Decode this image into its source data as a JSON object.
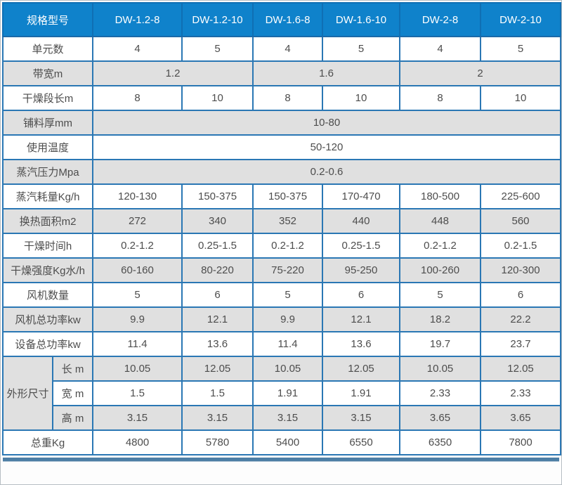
{
  "colors": {
    "header_bg": "#0f82cb",
    "header_text": "#ffffff",
    "cell_border": "#2a77b4",
    "stripe_gray": "#e0e0e0",
    "stripe_white": "#ffffff",
    "body_text": "#4d4d4d",
    "bottom_bar": "#4d7ea5"
  },
  "table": {
    "corner_label": "规格型号",
    "models": [
      "DW-1.2-8",
      "DW-1.2-10",
      "DW-1.6-8",
      "DW-1.6-10",
      "DW-2-8",
      "DW-2-10"
    ],
    "dimension_group_label": "外形尺寸",
    "rows": [
      {
        "label": "单元数",
        "shade": "white",
        "cells": [
          {
            "t": "4"
          },
          {
            "t": "5"
          },
          {
            "t": "4"
          },
          {
            "t": "5"
          },
          {
            "t": "4"
          },
          {
            "t": "5"
          }
        ]
      },
      {
        "label": "带宽m",
        "shade": "gray",
        "cells": [
          {
            "t": "1.2",
            "cs": 2
          },
          {
            "t": "1.6",
            "cs": 2
          },
          {
            "t": "2",
            "cs": 2
          }
        ]
      },
      {
        "label": "干燥段长m",
        "shade": "white",
        "cells": [
          {
            "t": "8"
          },
          {
            "t": "10"
          },
          {
            "t": "8"
          },
          {
            "t": "10"
          },
          {
            "t": "8"
          },
          {
            "t": "10"
          }
        ]
      },
      {
        "label": "铺料厚mm",
        "shade": "gray",
        "cells": [
          {
            "t": "10-80",
            "cs": 6
          }
        ]
      },
      {
        "label": "使用温度",
        "shade": "white",
        "cells": [
          {
            "t": "50-120",
            "cs": 6
          }
        ]
      },
      {
        "label": "蒸汽压力Mpa",
        "shade": "gray",
        "cells": [
          {
            "t": "0.2-0.6",
            "cs": 6
          }
        ]
      },
      {
        "label": "蒸汽耗量Kg/h",
        "shade": "white",
        "cells": [
          {
            "t": "120-130"
          },
          {
            "t": "150-375"
          },
          {
            "t": "150-375"
          },
          {
            "t": "170-470"
          },
          {
            "t": "180-500"
          },
          {
            "t": "225-600"
          }
        ]
      },
      {
        "label": "换热面积m2",
        "shade": "gray",
        "cells": [
          {
            "t": "272"
          },
          {
            "t": "340"
          },
          {
            "t": "352"
          },
          {
            "t": "440"
          },
          {
            "t": "448"
          },
          {
            "t": "560"
          }
        ]
      },
      {
        "label": "干燥时间h",
        "shade": "white",
        "cells": [
          {
            "t": "0.2-1.2"
          },
          {
            "t": "0.25-1.5"
          },
          {
            "t": "0.2-1.2"
          },
          {
            "t": "0.25-1.5"
          },
          {
            "t": "0.2-1.2"
          },
          {
            "t": "0.2-1.5"
          }
        ]
      },
      {
        "label": "干燥强度Kg水/h",
        "shade": "gray",
        "cells": [
          {
            "t": "60-160"
          },
          {
            "t": "80-220"
          },
          {
            "t": "75-220"
          },
          {
            "t": "95-250"
          },
          {
            "t": "100-260"
          },
          {
            "t": "120-300"
          }
        ]
      },
      {
        "label": "风机数量",
        "shade": "white",
        "cells": [
          {
            "t": "5"
          },
          {
            "t": "6"
          },
          {
            "t": "5"
          },
          {
            "t": "6"
          },
          {
            "t": "5"
          },
          {
            "t": "6"
          }
        ]
      },
      {
        "label": "风机总功率kw",
        "shade": "gray",
        "cells": [
          {
            "t": "9.9"
          },
          {
            "t": "12.1"
          },
          {
            "t": "9.9"
          },
          {
            "t": "12.1"
          },
          {
            "t": "18.2"
          },
          {
            "t": "22.2"
          }
        ]
      },
      {
        "label": "设备总功率kw",
        "shade": "white",
        "cells": [
          {
            "t": "11.4"
          },
          {
            "t": "13.6"
          },
          {
            "t": "11.4"
          },
          {
            "t": "13.6"
          },
          {
            "t": "19.7"
          },
          {
            "t": "23.7"
          }
        ]
      },
      {
        "group": "外形尺寸",
        "group_rowspan": 3,
        "sub": "长 m",
        "shade": "gray",
        "cells": [
          {
            "t": "10.05"
          },
          {
            "t": "12.05"
          },
          {
            "t": "10.05"
          },
          {
            "t": "12.05"
          },
          {
            "t": "10.05"
          },
          {
            "t": "12.05"
          }
        ]
      },
      {
        "sub": "宽 m",
        "shade": "white",
        "cells": [
          {
            "t": "1.5"
          },
          {
            "t": "1.5"
          },
          {
            "t": "1.91"
          },
          {
            "t": "1.91"
          },
          {
            "t": "2.33"
          },
          {
            "t": "2.33"
          }
        ]
      },
      {
        "sub": "高 m",
        "shade": "gray",
        "cells": [
          {
            "t": "3.15"
          },
          {
            "t": "3.15"
          },
          {
            "t": "3.15"
          },
          {
            "t": "3.15"
          },
          {
            "t": "3.65"
          },
          {
            "t": "3.65"
          }
        ]
      },
      {
        "label": "总重Kg",
        "shade": "white",
        "cells": [
          {
            "t": "4800"
          },
          {
            "t": "5780"
          },
          {
            "t": "5400"
          },
          {
            "t": "6550"
          },
          {
            "t": "6350"
          },
          {
            "t": "7800"
          }
        ]
      }
    ]
  }
}
